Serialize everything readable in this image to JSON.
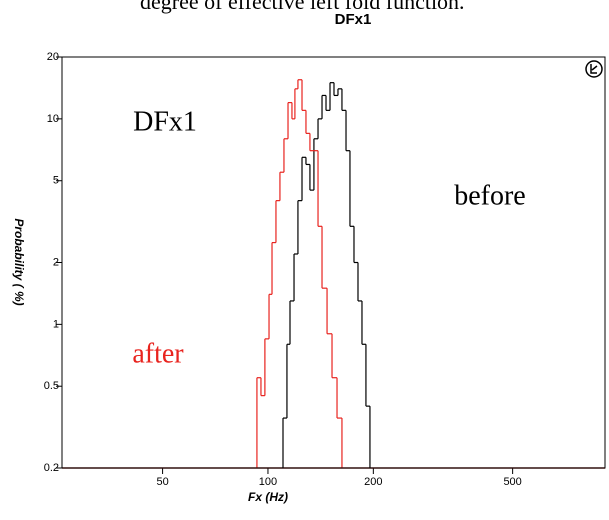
{
  "caption": "degree of effective left fold function.",
  "chart_data": {
    "type": "histogram",
    "title": "DFx1",
    "x_label": "Fx (Hz)",
    "y_label": "Probability ( %)",
    "xscale": "log",
    "yscale": "log",
    "xlim": [
      25.8,
      918
    ],
    "ylim": [
      0.2,
      20
    ],
    "xticks": [
      50,
      100,
      200,
      500
    ],
    "yticks": [
      0.2,
      0.5,
      1,
      2,
      5,
      10,
      20
    ],
    "annotations": [
      {
        "text": "DFx1",
        "color": "#000000"
      },
      {
        "text": "before",
        "color": "#000000"
      },
      {
        "text": "after",
        "color": "#e8231e"
      }
    ],
    "series": [
      {
        "name": "before",
        "color": "#000000",
        "bins": [
          110.4,
          113.3,
          115.6,
          118.7,
          121.8,
          125.1,
          128.4,
          131.8,
          135.3,
          139.0,
          142.7,
          146.5,
          150.4,
          154.4,
          158.5,
          162.7,
          167.1,
          171.5,
          176.1,
          180.8,
          185.6,
          190.5,
          195.6
        ],
        "values": [
          0.35,
          0.8,
          1.3,
          2.2,
          4,
          6.5,
          6,
          4.5,
          8,
          10,
          13,
          11,
          15,
          13,
          14,
          11,
          7,
          3,
          2,
          1.3,
          0.8,
          0.4
        ]
      },
      {
        "name": "after",
        "color": "#e8231e",
        "bins": [
          93.0,
          95.5,
          98.0,
          100.7,
          102.7,
          105.4,
          108.2,
          111.1,
          114.1,
          117.1,
          119.4,
          121.8,
          125.1,
          128.4,
          131.8,
          139.0,
          142.7,
          147.5,
          152.4,
          157.5,
          162.7
        ],
        "values": [
          0.55,
          0.45,
          0.85,
          1.4,
          2.5,
          4,
          5.5,
          8,
          12,
          10,
          14,
          15.5,
          11,
          8.5,
          7,
          3,
          1.5,
          0.9,
          0.55,
          0.35
        ]
      }
    ]
  }
}
